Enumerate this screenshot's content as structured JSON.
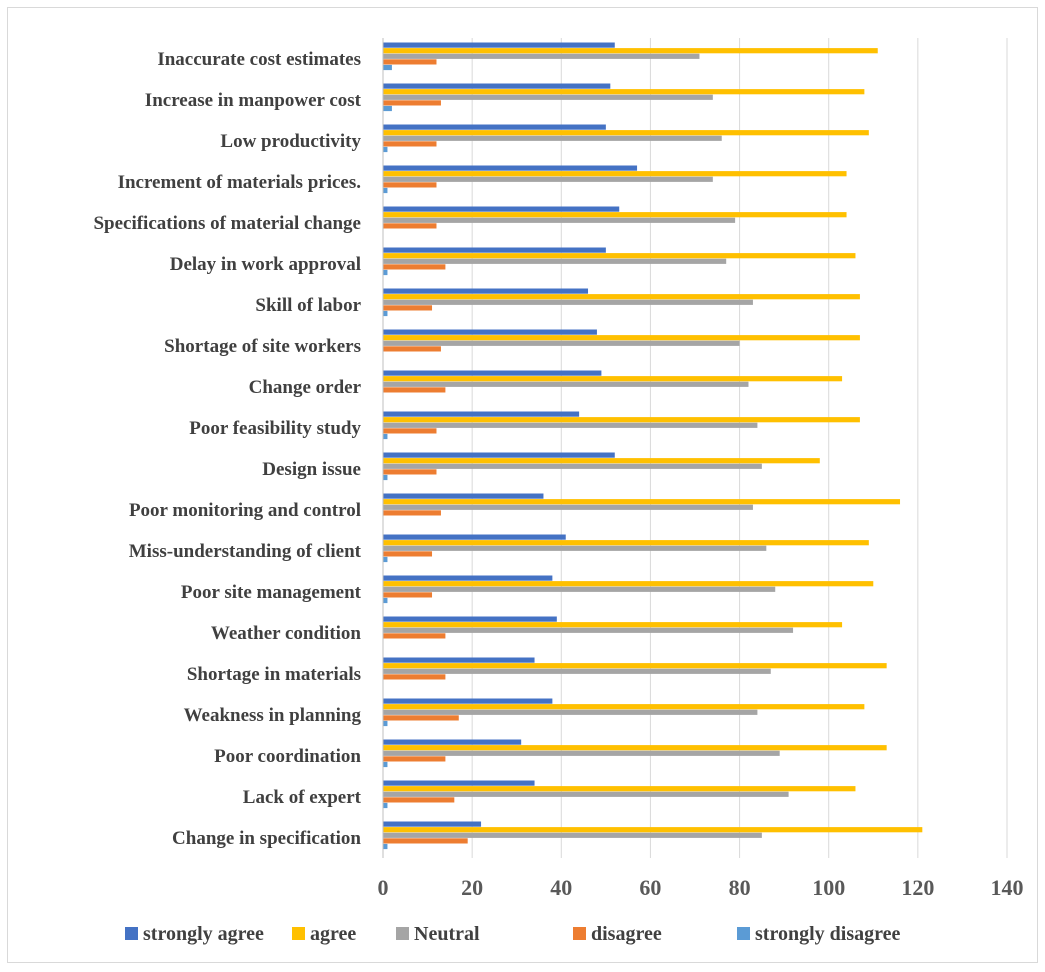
{
  "chart_data": {
    "type": "bar",
    "orientation": "horizontal",
    "categories": [
      "Inaccurate cost estimates",
      "Increase in manpower cost",
      "Low productivity",
      "Increment of materials prices.",
      "Specifications of material change",
      "Delay in work approval",
      "Skill of labor",
      "Shortage of site workers",
      "Change order",
      "Poor feasibility study",
      "Design issue",
      "Poor monitoring and control",
      "Miss-understanding of client",
      "Poor site management",
      "Weather condition",
      "Shortage in materials",
      "Weakness in planning",
      "Poor coordination",
      "Lack of expert",
      "Change in specification"
    ],
    "series": [
      {
        "name": "strongly agree",
        "color": "#4472C4",
        "values": [
          52,
          51,
          50,
          57,
          53,
          50,
          46,
          48,
          49,
          44,
          52,
          36,
          41,
          38,
          39,
          34,
          38,
          31,
          34,
          22
        ]
      },
      {
        "name": "agree",
        "color": "#FFC000",
        "values": [
          111,
          108,
          109,
          104,
          104,
          106,
          107,
          107,
          103,
          107,
          98,
          116,
          109,
          110,
          103,
          113,
          108,
          113,
          106,
          121
        ]
      },
      {
        "name": "Neutral",
        "color": "#A5A5A5",
        "values": [
          71,
          74,
          76,
          74,
          79,
          77,
          83,
          80,
          82,
          84,
          85,
          83,
          86,
          88,
          92,
          87,
          84,
          89,
          91,
          85
        ]
      },
      {
        "name": "disagree",
        "color": "#ED7D31",
        "values": [
          12,
          13,
          12,
          12,
          12,
          14,
          11,
          13,
          14,
          12,
          12,
          13,
          11,
          11,
          14,
          14,
          17,
          14,
          16,
          19
        ]
      },
      {
        "name": "strongly disagree",
        "color": "#5B9BD5",
        "values": [
          2,
          2,
          1,
          1,
          0,
          1,
          1,
          0,
          0,
          1,
          1,
          0,
          1,
          1,
          0,
          0,
          1,
          1,
          1,
          1
        ]
      }
    ],
    "xticks": [
      "0",
      "20",
      "40",
      "60",
      "80",
      "100",
      "120",
      "140"
    ],
    "xlim": [
      0,
      140
    ],
    "grid": "vertical",
    "legend": "bottom",
    "title": "",
    "xlabel": "",
    "ylabel": ""
  }
}
